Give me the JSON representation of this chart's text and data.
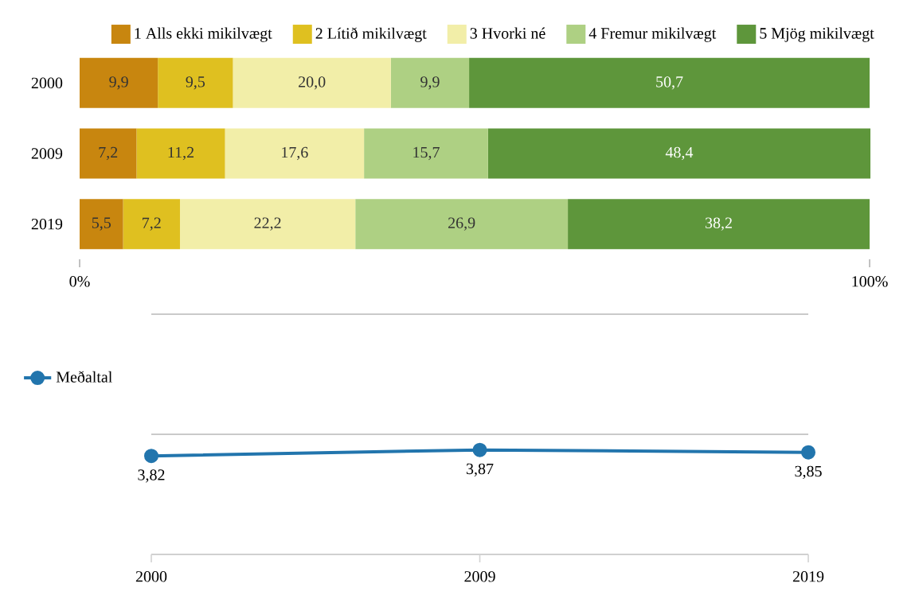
{
  "chart_data": [
    {
      "type": "bar",
      "orientation": "horizontal",
      "stacked": true,
      "categories": [
        "2000",
        "2009",
        "2019"
      ],
      "series": [
        {
          "name": "1 Alls ekki mikilvægt",
          "color": "#c8860f",
          "values": [
            9.9,
            7.2,
            5.5
          ],
          "value_labels": [
            "9,9",
            "7,2",
            "5,5"
          ]
        },
        {
          "name": "2 Lítið mikilvægt",
          "color": "#dfc020",
          "values": [
            9.5,
            11.2,
            7.2
          ],
          "value_labels": [
            "9,5",
            "11,2",
            "7,2"
          ]
        },
        {
          "name": "3 Hvorki né",
          "color": "#f2eea8",
          "values": [
            20.0,
            17.6,
            22.2
          ],
          "value_labels": [
            "20,0",
            "17,6",
            "22,2"
          ]
        },
        {
          "name": "4 Fremur mikilvægt",
          "color": "#aed083",
          "values": [
            9.9,
            15.7,
            26.9
          ],
          "value_labels": [
            "9,9",
            "15,7",
            "26,9"
          ]
        },
        {
          "name": "5 Mjög mikilvægt",
          "color": "#5e963b",
          "values": [
            50.7,
            48.4,
            38.2
          ],
          "value_labels": [
            "50,7",
            "48,4",
            "38,2"
          ]
        }
      ],
      "xlim": [
        0,
        100
      ],
      "xticks": [
        {
          "value": 0,
          "label": "0%"
        },
        {
          "value": 100,
          "label": "100%"
        }
      ],
      "legend": "top"
    },
    {
      "type": "line",
      "categories": [
        "2000",
        "2009",
        "2019"
      ],
      "series": [
        {
          "name": "Meðaltal",
          "color": "#2275ad",
          "values": [
            3.82,
            3.87,
            3.85
          ],
          "value_labels": [
            "3,82",
            "3,87",
            "3,85"
          ]
        }
      ],
      "ylim": [
        3,
        5
      ],
      "yticks": [
        {
          "value": 3,
          "label": null
        },
        {
          "value": 4,
          "label": null
        },
        {
          "value": 5,
          "label": null
        }
      ],
      "tick_labels": "x",
      "grid": "y",
      "legend": "top left",
      "marker": "circle"
    }
  ]
}
